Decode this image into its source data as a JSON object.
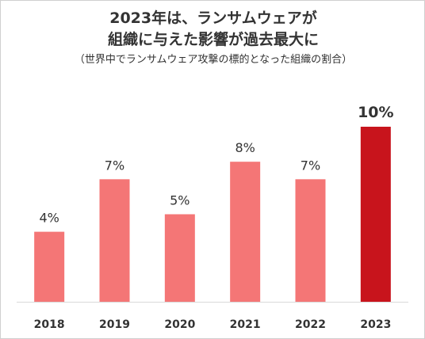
{
  "header": {
    "title_line1": "2023年は、ランサムウェアが",
    "title_line2": "組織に与えた影響が過去最大に",
    "subtitle": "（世界中でランサムウェア攻撃の標的となった組織の割合）"
  },
  "colors": {
    "bar": "#f47676",
    "bar_highlight": "#c8141c",
    "axis": "#d9d9d9",
    "text": "#333333"
  },
  "chart_data": {
    "type": "bar",
    "categories": [
      "2018",
      "2019",
      "2020",
      "2021",
      "2022",
      "2023"
    ],
    "values": [
      4,
      7,
      5,
      8,
      7,
      10
    ],
    "value_labels": [
      "4%",
      "7%",
      "5%",
      "8%",
      "7%",
      "10%"
    ],
    "highlight_index": 5,
    "ylim": [
      0,
      10
    ],
    "ylabel": "",
    "xlabel": "",
    "unit": "%",
    "grid": false,
    "legend": "none"
  }
}
